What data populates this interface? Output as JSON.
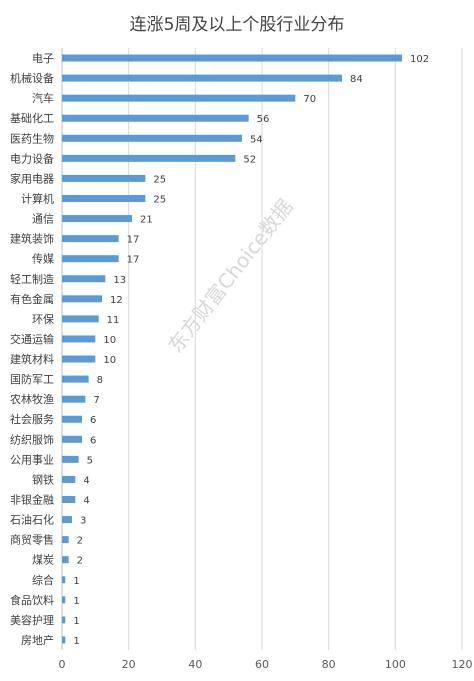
{
  "chart_data": {
    "type": "bar",
    "orientation": "horizontal",
    "title": "连涨5周及以上个股行业分布",
    "categories": [
      "电子",
      "机械设备",
      "汽车",
      "基础化工",
      "医药生物",
      "电力设备",
      "家用电器",
      "计算机",
      "通信",
      "建筑装饰",
      "传媒",
      "轻工制造",
      "有色金属",
      "环保",
      "交通运输",
      "建筑材料",
      "国防军工",
      "农林牧渔",
      "社会服务",
      "纺织服饰",
      "公用事业",
      "钢铁",
      "非银金融",
      "石油石化",
      "商贸零售",
      "煤炭",
      "综合",
      "食品饮料",
      "美容护理",
      "房地产"
    ],
    "values": [
      102,
      84,
      70,
      56,
      54,
      52,
      25,
      25,
      21,
      17,
      17,
      13,
      12,
      11,
      10,
      10,
      8,
      7,
      6,
      6,
      5,
      4,
      4,
      3,
      2,
      2,
      1,
      1,
      1,
      1
    ],
    "xlim": [
      0,
      120
    ],
    "xticks": [
      "0",
      "20",
      "40",
      "60",
      "80",
      "100",
      "120"
    ],
    "grid": true,
    "bar_color": "#5b9bd5",
    "watermark": "东方财富Choice数据"
  }
}
